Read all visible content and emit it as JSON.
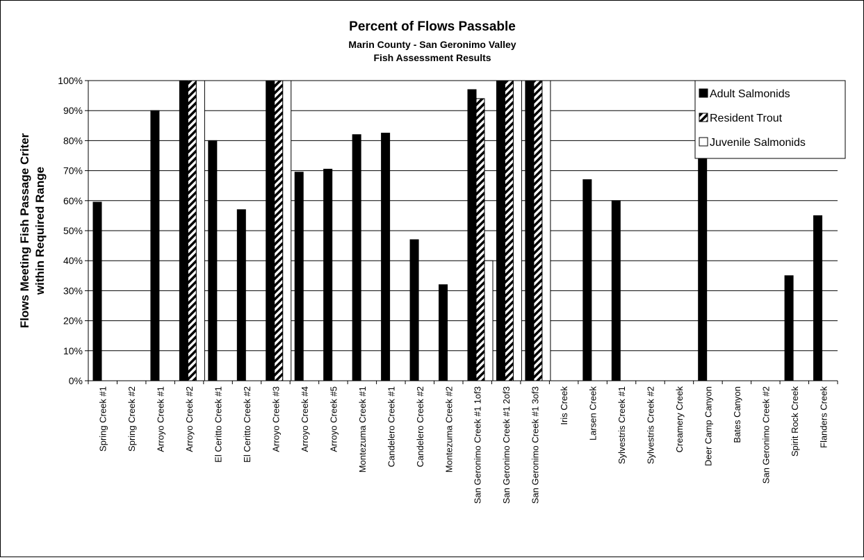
{
  "chart_data": {
    "type": "bar",
    "title": "Percent of Flows Passable",
    "subtitle_lines": [
      "Marin County - San Geronimo Valley",
      "Fish Assessment Results"
    ],
    "ylabel_lines": [
      "Flows Meeting Fish Passage Criter",
      "within Required Range"
    ],
    "xlabel": "",
    "ylim": [
      0,
      100
    ],
    "yticks": [
      "0%",
      "10%",
      "20%",
      "30%",
      "40%",
      "50%",
      "60%",
      "70%",
      "80%",
      "90%",
      "100%"
    ],
    "grid": true,
    "legend_position": "top-right",
    "categories": [
      "Spring Creek #1",
      "Spring Creek #2",
      "Arroyo Creek #1",
      "Arroyo Creek #2",
      "El Ceritto Creek #1",
      "El Ceritto Creek #2",
      "Arroyo Creek #3",
      "Arroyo Creek #4",
      "Arroyo Creek #5",
      "Montezuma Creek #1",
      "Candelero Creek #1",
      "Candelero Creek #2",
      "Montezuma Creek #2",
      "San Geronimo Creek #1 1of3",
      "San Geronimo Creek #1 2of3",
      "San Geronimo Creek #1 3of3",
      "Iris Creek",
      "Larsen Creek",
      "Sylvestris Creek #1",
      "Sylvestris Creek #2",
      "Creamery Creek",
      "Deer Camp Canyon",
      "Bates Canyon",
      "San Geronimo Creek #2",
      "Spirit Rock Creek",
      "Flanders Creek"
    ],
    "series": [
      {
        "name": "Adult Salmonids",
        "pattern": "solid",
        "values": [
          59.5,
          0,
          90,
          100,
          80,
          57,
          100,
          69.5,
          70.5,
          82,
          82.5,
          47,
          32,
          97,
          100,
          100,
          0,
          67,
          60,
          0,
          0,
          76,
          0,
          0,
          35,
          55
        ]
      },
      {
        "name": "Resident Trout",
        "pattern": "hatched",
        "values": [
          0,
          0,
          0,
          100,
          0,
          0,
          100,
          0,
          0,
          0,
          0,
          0,
          0,
          94,
          100,
          100,
          0,
          0,
          0,
          0,
          0,
          0,
          0,
          0,
          0,
          0
        ]
      },
      {
        "name": "Juvenile Salmonids",
        "pattern": "hollow",
        "values": [
          0,
          0,
          0,
          100,
          0,
          0,
          100,
          0,
          0,
          0,
          0,
          0,
          0,
          40,
          100,
          100,
          0,
          0,
          0,
          0,
          0,
          0,
          0,
          0,
          0,
          0
        ]
      }
    ],
    "colors": {
      "solid": "#000000",
      "hollow_fill": "#ffffff",
      "grid": "#000000"
    }
  }
}
